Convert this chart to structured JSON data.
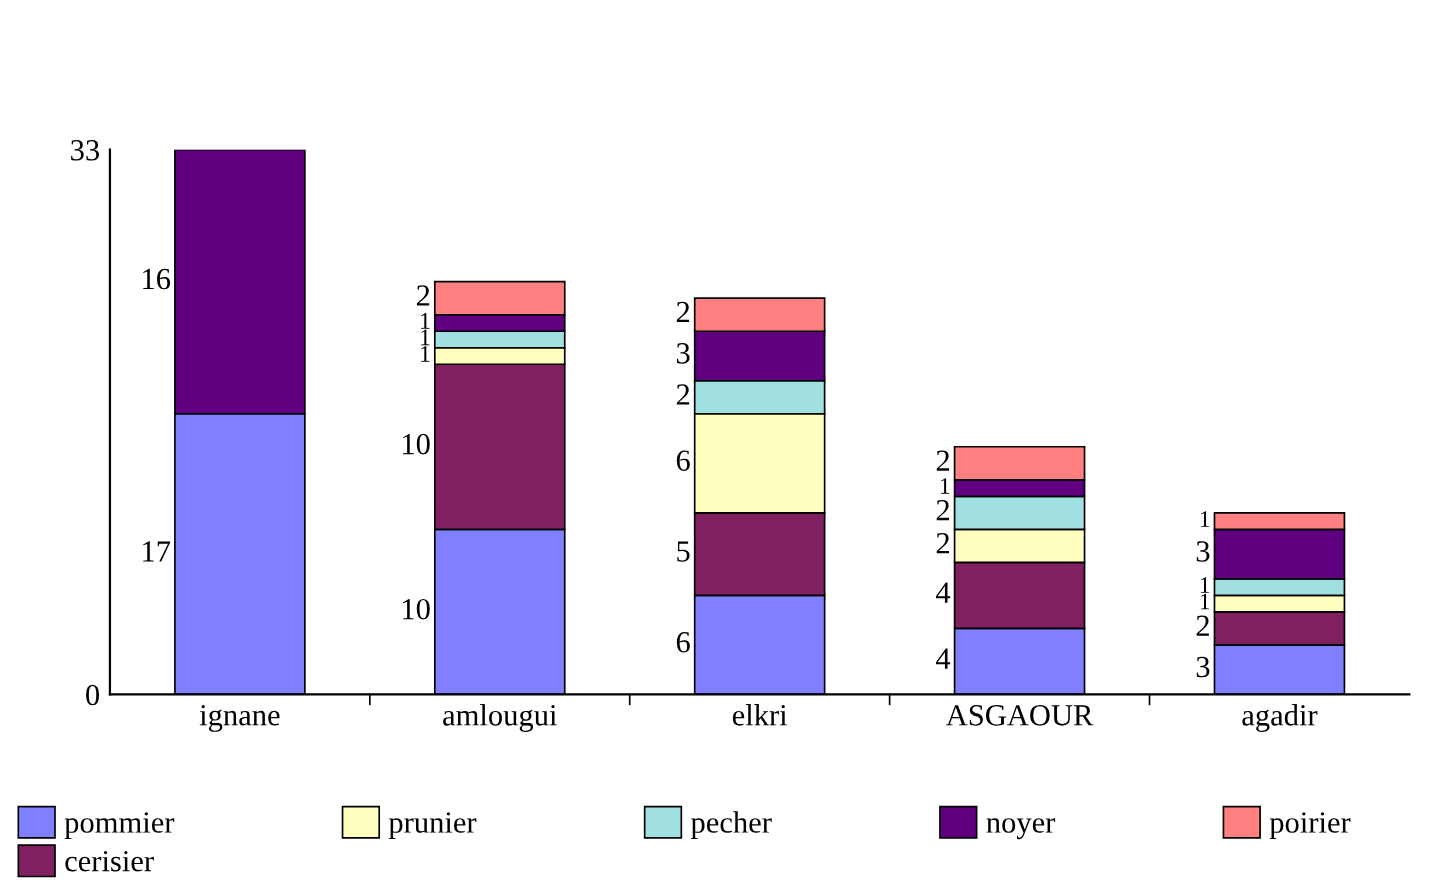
{
  "chart_data": {
    "type": "bar",
    "stacked": true,
    "categories": [
      "ignane",
      "amlougui",
      "elkri",
      "ASGAOUR",
      "agadir"
    ],
    "ylim": [
      0,
      33
    ],
    "yticks": [
      0,
      33
    ],
    "grid": false,
    "legend": "bottom",
    "series": [
      {
        "name": "pommier",
        "color": "#8080ff",
        "values": [
          17,
          10,
          6,
          4,
          3
        ],
        "value_labels": [
          "17",
          "10",
          "6",
          "4",
          "3"
        ]
      },
      {
        "name": "cerisier",
        "color": "#802060",
        "values": [
          0,
          10,
          5,
          4,
          2
        ],
        "value_labels": [
          null,
          "10",
          "5",
          "4",
          "2"
        ]
      },
      {
        "name": "prunier",
        "color": "#ffffc0",
        "values": [
          0,
          1,
          6,
          2,
          1
        ],
        "value_labels": [
          null,
          "1",
          "6",
          "2",
          "1"
        ]
      },
      {
        "name": "pecher",
        "color": "#a0e0e0",
        "values": [
          0,
          1,
          2,
          2,
          1
        ],
        "value_labels": [
          null,
          "1",
          "2",
          "2",
          "1"
        ]
      },
      {
        "name": "noyer",
        "color": "#600080",
        "values": [
          16,
          1,
          3,
          1,
          3
        ],
        "value_labels": [
          "16",
          "1",
          "3",
          "1",
          "3"
        ]
      },
      {
        "name": "poirier",
        "color": "#ff8080",
        "values": [
          0,
          2,
          2,
          2,
          1
        ],
        "value_labels": [
          null,
          "2",
          "2",
          "2",
          "1"
        ]
      }
    ]
  }
}
